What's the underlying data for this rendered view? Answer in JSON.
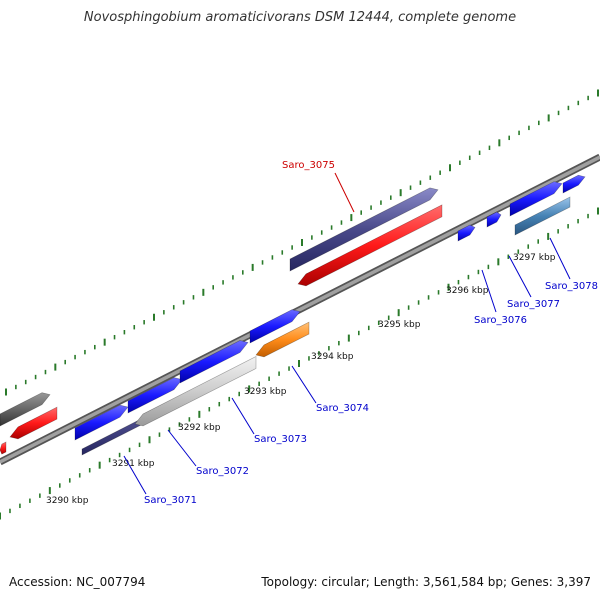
{
  "title": "Novosphingobium aromaticivorans DSM 12444, complete genome",
  "footer": {
    "accession": "Accession: NC_007794",
    "summary": "Topology: circular; Length: 3,561,584 bp; Genes: 3,397"
  },
  "ticks": [
    {
      "text": "3290 kbp"
    },
    {
      "text": "3291 kbp"
    },
    {
      "text": "3292 kbp"
    },
    {
      "text": "3293 kbp"
    },
    {
      "text": "3294 kbp"
    },
    {
      "text": "3295 kbp"
    },
    {
      "text": "3296 kbp"
    },
    {
      "text": "3297 kbp"
    }
  ],
  "gene_labels": [
    {
      "text": "Saro_3071",
      "color": "#0000cc"
    },
    {
      "text": "Saro_3072",
      "color": "#0000cc"
    },
    {
      "text": "Saro_3073",
      "color": "#0000cc"
    },
    {
      "text": "Saro_3074",
      "color": "#0000cc"
    },
    {
      "text": "Saro_3075",
      "color": "#cc0000"
    },
    {
      "text": "Saro_3076",
      "color": "#0000cc"
    },
    {
      "text": "Saro_3077",
      "color": "#0000cc"
    },
    {
      "text": "Saro_3078",
      "color": "#0000cc"
    }
  ],
  "colors": {
    "forward_gene": "#1a1aff",
    "reverse_gene": "#ff1a1a",
    "rna_gene": "#4a4a8a",
    "backbone": "#7a7a7a",
    "tick": "#2a7a2a",
    "grey_gene": "#666666",
    "light_grey_gene": "#cccccc",
    "orange_gene": "#ff8c1a",
    "steel_gene": "#4682b4"
  }
}
